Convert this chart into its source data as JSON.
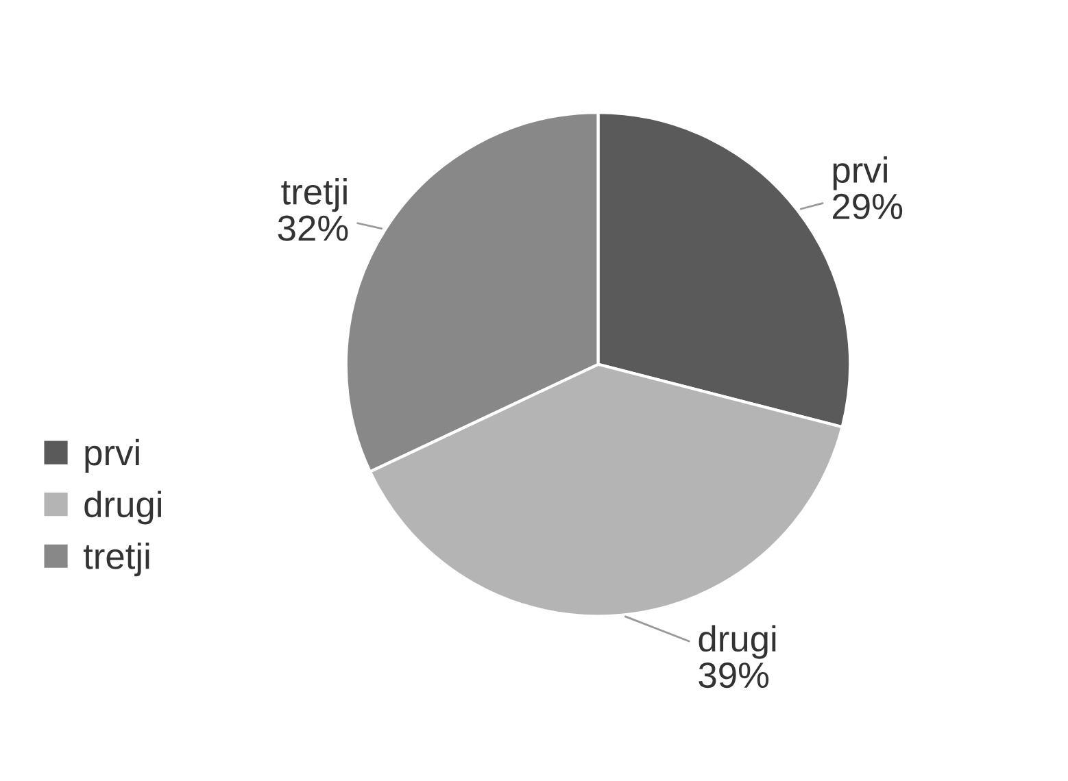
{
  "chart_data": {
    "type": "pie",
    "categories": [
      "prvi",
      "drugi",
      "tretji"
    ],
    "values": [
      29,
      39,
      32
    ],
    "value_labels": [
      "29%",
      "39%",
      "32%"
    ],
    "colors": [
      "#5a5a5a",
      "#b4b4b4",
      "#888888"
    ],
    "legend": "left"
  }
}
